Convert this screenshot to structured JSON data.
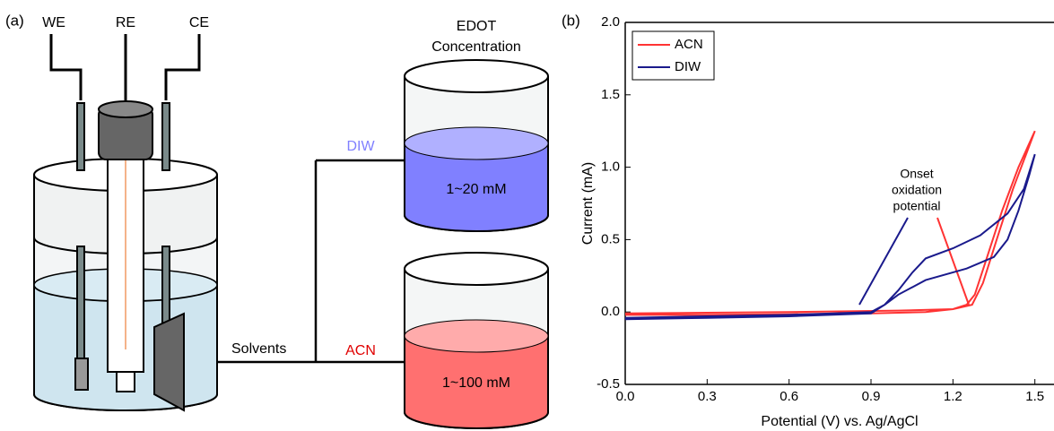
{
  "diagram": {
    "panel_label": "(a)",
    "electrodes": [
      "WE",
      "RE",
      "CE"
    ],
    "solvents_label": "Solvents",
    "solvent_diw": "DIW",
    "solvent_acn": "ACN",
    "concentration_title": [
      "EDOT",
      "Concentration"
    ],
    "diw_concentration": "1~20 mM",
    "acn_concentration": "1~100 mM"
  },
  "chart_data": {
    "type": "line",
    "panel_label": "(b)",
    "xlabel": "Potential (V) vs. Ag/AgCl",
    "ylabel": "Current (mA)",
    "annotation": [
      "Onset",
      "oxidation",
      "potential"
    ],
    "xlim": [
      0,
      1.57
    ],
    "ylim": [
      -0.5,
      2.0
    ],
    "xticks": [
      {
        "value": 0,
        "label": "0.0"
      },
      0.3,
      0.6,
      0.9,
      1.2,
      1.5
    ],
    "yticks": [
      -0.5,
      {
        "value": 0,
        "label": "0.0"
      },
      0.5,
      {
        "value": 1,
        "label": "1.0"
      },
      1.5,
      {
        "value": 2,
        "label": "2.0"
      }
    ],
    "legend": "upper left",
    "series": [
      {
        "name": "ACN",
        "color": "#ff3333",
        "x": [
          0,
          0.3,
          0.6,
          0.9,
          1.1,
          1.2,
          1.25,
          1.28,
          1.32,
          1.38,
          1.44,
          1.5,
          1.47,
          1.42,
          1.36,
          1.31,
          1.27,
          1.2,
          1.0,
          0.6,
          0.3,
          0
        ],
        "values": [
          -0.02,
          -0.02,
          -0.015,
          -0.01,
          0.0,
          0.02,
          0.05,
          0.12,
          0.35,
          0.7,
          1.0,
          1.25,
          1.1,
          0.85,
          0.5,
          0.2,
          0.05,
          0.02,
          0.01,
          0.0,
          -0.005,
          -0.01
        ]
      },
      {
        "name": "DIW",
        "color": "#1a1a8c",
        "x": [
          0,
          0.3,
          0.6,
          0.9,
          0.95,
          1.0,
          1.05,
          1.1,
          1.2,
          1.3,
          1.4,
          1.46,
          1.5,
          1.48,
          1.44,
          1.4,
          1.35,
          1.25,
          1.1,
          1.0,
          0.95,
          0.9,
          0.6,
          0.3,
          0
        ],
        "values": [
          -0.05,
          -0.04,
          -0.03,
          -0.01,
          0.05,
          0.15,
          0.27,
          0.37,
          0.44,
          0.53,
          0.68,
          0.85,
          1.09,
          0.95,
          0.7,
          0.5,
          0.38,
          0.3,
          0.22,
          0.12,
          0.05,
          0.0,
          -0.02,
          -0.03,
          -0.04
        ]
      }
    ]
  }
}
